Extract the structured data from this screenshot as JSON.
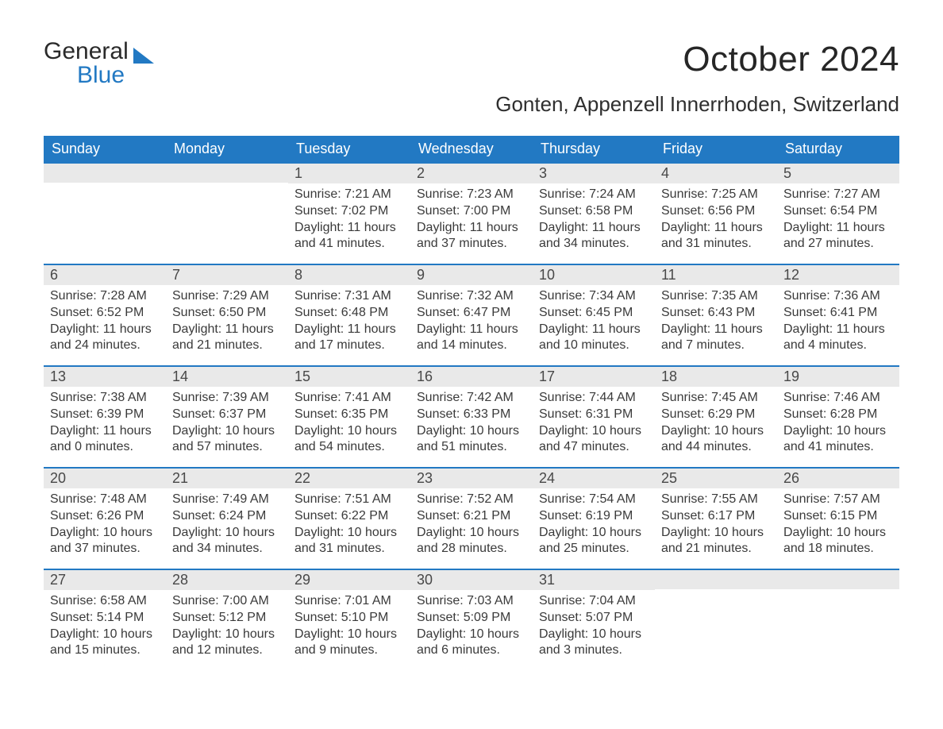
{
  "logo": {
    "word1": "General",
    "word2": "Blue"
  },
  "header": {
    "title": "October 2024",
    "location": "Gonten, Appenzell Innerrhoden, Switzerland"
  },
  "colors": {
    "header_bg": "#2279c3",
    "header_text": "#ffffff",
    "daynum_bg": "#e9e9e9",
    "daynum_border": "#2279c3",
    "body_text": "#3a3a3a",
    "page_bg": "#ffffff"
  },
  "typography": {
    "title_fontsize": 44,
    "location_fontsize": 26,
    "weekday_fontsize": 18,
    "daynum_fontsize": 18,
    "cell_fontsize": 16,
    "font_family": "Segoe UI"
  },
  "calendar": {
    "weekdays": [
      "Sunday",
      "Monday",
      "Tuesday",
      "Wednesday",
      "Thursday",
      "Friday",
      "Saturday"
    ],
    "weeks": [
      [
        null,
        null,
        {
          "n": "1",
          "sunrise": "Sunrise: 7:21 AM",
          "sunset": "Sunset: 7:02 PM",
          "daylight": "Daylight: 11 hours and 41 minutes."
        },
        {
          "n": "2",
          "sunrise": "Sunrise: 7:23 AM",
          "sunset": "Sunset: 7:00 PM",
          "daylight": "Daylight: 11 hours and 37 minutes."
        },
        {
          "n": "3",
          "sunrise": "Sunrise: 7:24 AM",
          "sunset": "Sunset: 6:58 PM",
          "daylight": "Daylight: 11 hours and 34 minutes."
        },
        {
          "n": "4",
          "sunrise": "Sunrise: 7:25 AM",
          "sunset": "Sunset: 6:56 PM",
          "daylight": "Daylight: 11 hours and 31 minutes."
        },
        {
          "n": "5",
          "sunrise": "Sunrise: 7:27 AM",
          "sunset": "Sunset: 6:54 PM",
          "daylight": "Daylight: 11 hours and 27 minutes."
        }
      ],
      [
        {
          "n": "6",
          "sunrise": "Sunrise: 7:28 AM",
          "sunset": "Sunset: 6:52 PM",
          "daylight": "Daylight: 11 hours and 24 minutes."
        },
        {
          "n": "7",
          "sunrise": "Sunrise: 7:29 AM",
          "sunset": "Sunset: 6:50 PM",
          "daylight": "Daylight: 11 hours and 21 minutes."
        },
        {
          "n": "8",
          "sunrise": "Sunrise: 7:31 AM",
          "sunset": "Sunset: 6:48 PM",
          "daylight": "Daylight: 11 hours and 17 minutes."
        },
        {
          "n": "9",
          "sunrise": "Sunrise: 7:32 AM",
          "sunset": "Sunset: 6:47 PM",
          "daylight": "Daylight: 11 hours and 14 minutes."
        },
        {
          "n": "10",
          "sunrise": "Sunrise: 7:34 AM",
          "sunset": "Sunset: 6:45 PM",
          "daylight": "Daylight: 11 hours and 10 minutes."
        },
        {
          "n": "11",
          "sunrise": "Sunrise: 7:35 AM",
          "sunset": "Sunset: 6:43 PM",
          "daylight": "Daylight: 11 hours and 7 minutes."
        },
        {
          "n": "12",
          "sunrise": "Sunrise: 7:36 AM",
          "sunset": "Sunset: 6:41 PM",
          "daylight": "Daylight: 11 hours and 4 minutes."
        }
      ],
      [
        {
          "n": "13",
          "sunrise": "Sunrise: 7:38 AM",
          "sunset": "Sunset: 6:39 PM",
          "daylight": "Daylight: 11 hours and 0 minutes."
        },
        {
          "n": "14",
          "sunrise": "Sunrise: 7:39 AM",
          "sunset": "Sunset: 6:37 PM",
          "daylight": "Daylight: 10 hours and 57 minutes."
        },
        {
          "n": "15",
          "sunrise": "Sunrise: 7:41 AM",
          "sunset": "Sunset: 6:35 PM",
          "daylight": "Daylight: 10 hours and 54 minutes."
        },
        {
          "n": "16",
          "sunrise": "Sunrise: 7:42 AM",
          "sunset": "Sunset: 6:33 PM",
          "daylight": "Daylight: 10 hours and 51 minutes."
        },
        {
          "n": "17",
          "sunrise": "Sunrise: 7:44 AM",
          "sunset": "Sunset: 6:31 PM",
          "daylight": "Daylight: 10 hours and 47 minutes."
        },
        {
          "n": "18",
          "sunrise": "Sunrise: 7:45 AM",
          "sunset": "Sunset: 6:29 PM",
          "daylight": "Daylight: 10 hours and 44 minutes."
        },
        {
          "n": "19",
          "sunrise": "Sunrise: 7:46 AM",
          "sunset": "Sunset: 6:28 PM",
          "daylight": "Daylight: 10 hours and 41 minutes."
        }
      ],
      [
        {
          "n": "20",
          "sunrise": "Sunrise: 7:48 AM",
          "sunset": "Sunset: 6:26 PM",
          "daylight": "Daylight: 10 hours and 37 minutes."
        },
        {
          "n": "21",
          "sunrise": "Sunrise: 7:49 AM",
          "sunset": "Sunset: 6:24 PM",
          "daylight": "Daylight: 10 hours and 34 minutes."
        },
        {
          "n": "22",
          "sunrise": "Sunrise: 7:51 AM",
          "sunset": "Sunset: 6:22 PM",
          "daylight": "Daylight: 10 hours and 31 minutes."
        },
        {
          "n": "23",
          "sunrise": "Sunrise: 7:52 AM",
          "sunset": "Sunset: 6:21 PM",
          "daylight": "Daylight: 10 hours and 28 minutes."
        },
        {
          "n": "24",
          "sunrise": "Sunrise: 7:54 AM",
          "sunset": "Sunset: 6:19 PM",
          "daylight": "Daylight: 10 hours and 25 minutes."
        },
        {
          "n": "25",
          "sunrise": "Sunrise: 7:55 AM",
          "sunset": "Sunset: 6:17 PM",
          "daylight": "Daylight: 10 hours and 21 minutes."
        },
        {
          "n": "26",
          "sunrise": "Sunrise: 7:57 AM",
          "sunset": "Sunset: 6:15 PM",
          "daylight": "Daylight: 10 hours and 18 minutes."
        }
      ],
      [
        {
          "n": "27",
          "sunrise": "Sunrise: 6:58 AM",
          "sunset": "Sunset: 5:14 PM",
          "daylight": "Daylight: 10 hours and 15 minutes."
        },
        {
          "n": "28",
          "sunrise": "Sunrise: 7:00 AM",
          "sunset": "Sunset: 5:12 PM",
          "daylight": "Daylight: 10 hours and 12 minutes."
        },
        {
          "n": "29",
          "sunrise": "Sunrise: 7:01 AM",
          "sunset": "Sunset: 5:10 PM",
          "daylight": "Daylight: 10 hours and 9 minutes."
        },
        {
          "n": "30",
          "sunrise": "Sunrise: 7:03 AM",
          "sunset": "Sunset: 5:09 PM",
          "daylight": "Daylight: 10 hours and 6 minutes."
        },
        {
          "n": "31",
          "sunrise": "Sunrise: 7:04 AM",
          "sunset": "Sunset: 5:07 PM",
          "daylight": "Daylight: 10 hours and 3 minutes."
        },
        null,
        null
      ]
    ]
  }
}
